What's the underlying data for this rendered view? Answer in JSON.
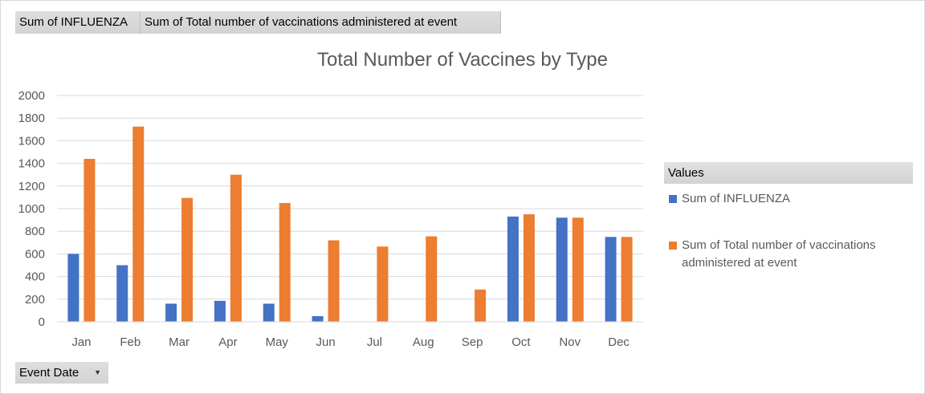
{
  "field_buttons": {
    "value1": "Sum of INFLUENZA",
    "value2": "Sum of Total number of vaccinations administered at event"
  },
  "axis_field": {
    "label": "Event Date",
    "icon": "dropdown-arrow-icon"
  },
  "legend": {
    "header": "Values",
    "items": [
      {
        "label": "Sum of INFLUENZA",
        "color": "#4472c4"
      },
      {
        "label": "Sum of Total number of vaccinations administered at event",
        "color": "#ed7d31"
      }
    ]
  },
  "chart_data": {
    "type": "bar",
    "title": "Total Number of Vaccines by Type",
    "categories": [
      "Jan",
      "Feb",
      "Mar",
      "Apr",
      "May",
      "Jun",
      "Jul",
      "Aug",
      "Sep",
      "Oct",
      "Nov",
      "Dec"
    ],
    "series": [
      {
        "name": "Sum of INFLUENZA",
        "color": "#4472c4",
        "values": [
          600,
          500,
          160,
          185,
          160,
          50,
          0,
          0,
          0,
          930,
          920,
          750
        ]
      },
      {
        "name": "Sum of Total number of vaccinations administered at event",
        "color": "#ed7d31",
        "values": [
          1440,
          1725,
          1095,
          1300,
          1050,
          720,
          665,
          755,
          285,
          950,
          920,
          750
        ]
      }
    ],
    "yticks": [
      "0",
      "200",
      "400",
      "600",
      "800",
      "1000",
      "1200",
      "1400",
      "1600",
      "1800",
      "2000"
    ],
    "ylim": [
      0,
      2000
    ],
    "xlabel": "",
    "ylabel": "",
    "grid": true,
    "legend_position": "right"
  }
}
